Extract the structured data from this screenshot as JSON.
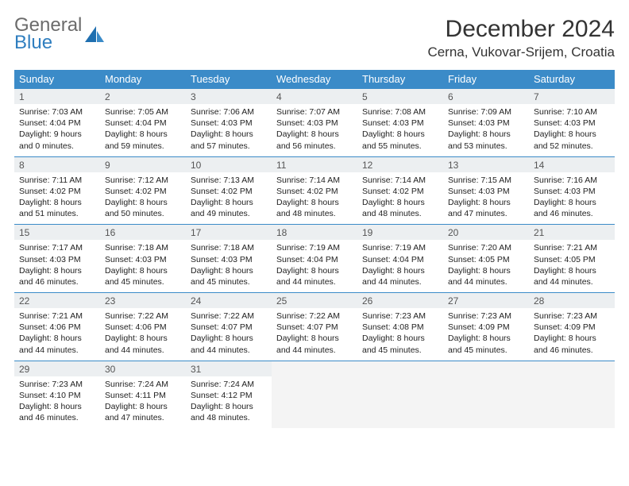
{
  "logo": {
    "text1": "General",
    "text2": "Blue"
  },
  "title": "December 2024",
  "location": "Cerna, Vukovar-Srijem, Croatia",
  "colors": {
    "header_bg": "#3b8bc8",
    "header_text": "#ffffff",
    "daynum_bg": "#eceff1",
    "border": "#3b8bc8",
    "logo_gray": "#6b6b6b",
    "logo_blue": "#2f7ebf"
  },
  "weekdays": [
    "Sunday",
    "Monday",
    "Tuesday",
    "Wednesday",
    "Thursday",
    "Friday",
    "Saturday"
  ],
  "weeks": [
    [
      {
        "n": "1",
        "sr": "Sunrise: 7:03 AM",
        "ss": "Sunset: 4:04 PM",
        "d1": "Daylight: 9 hours",
        "d2": "and 0 minutes."
      },
      {
        "n": "2",
        "sr": "Sunrise: 7:05 AM",
        "ss": "Sunset: 4:04 PM",
        "d1": "Daylight: 8 hours",
        "d2": "and 59 minutes."
      },
      {
        "n": "3",
        "sr": "Sunrise: 7:06 AM",
        "ss": "Sunset: 4:03 PM",
        "d1": "Daylight: 8 hours",
        "d2": "and 57 minutes."
      },
      {
        "n": "4",
        "sr": "Sunrise: 7:07 AM",
        "ss": "Sunset: 4:03 PM",
        "d1": "Daylight: 8 hours",
        "d2": "and 56 minutes."
      },
      {
        "n": "5",
        "sr": "Sunrise: 7:08 AM",
        "ss": "Sunset: 4:03 PM",
        "d1": "Daylight: 8 hours",
        "d2": "and 55 minutes."
      },
      {
        "n": "6",
        "sr": "Sunrise: 7:09 AM",
        "ss": "Sunset: 4:03 PM",
        "d1": "Daylight: 8 hours",
        "d2": "and 53 minutes."
      },
      {
        "n": "7",
        "sr": "Sunrise: 7:10 AM",
        "ss": "Sunset: 4:03 PM",
        "d1": "Daylight: 8 hours",
        "d2": "and 52 minutes."
      }
    ],
    [
      {
        "n": "8",
        "sr": "Sunrise: 7:11 AM",
        "ss": "Sunset: 4:02 PM",
        "d1": "Daylight: 8 hours",
        "d2": "and 51 minutes."
      },
      {
        "n": "9",
        "sr": "Sunrise: 7:12 AM",
        "ss": "Sunset: 4:02 PM",
        "d1": "Daylight: 8 hours",
        "d2": "and 50 minutes."
      },
      {
        "n": "10",
        "sr": "Sunrise: 7:13 AM",
        "ss": "Sunset: 4:02 PM",
        "d1": "Daylight: 8 hours",
        "d2": "and 49 minutes."
      },
      {
        "n": "11",
        "sr": "Sunrise: 7:14 AM",
        "ss": "Sunset: 4:02 PM",
        "d1": "Daylight: 8 hours",
        "d2": "and 48 minutes."
      },
      {
        "n": "12",
        "sr": "Sunrise: 7:14 AM",
        "ss": "Sunset: 4:02 PM",
        "d1": "Daylight: 8 hours",
        "d2": "and 48 minutes."
      },
      {
        "n": "13",
        "sr": "Sunrise: 7:15 AM",
        "ss": "Sunset: 4:03 PM",
        "d1": "Daylight: 8 hours",
        "d2": "and 47 minutes."
      },
      {
        "n": "14",
        "sr": "Sunrise: 7:16 AM",
        "ss": "Sunset: 4:03 PM",
        "d1": "Daylight: 8 hours",
        "d2": "and 46 minutes."
      }
    ],
    [
      {
        "n": "15",
        "sr": "Sunrise: 7:17 AM",
        "ss": "Sunset: 4:03 PM",
        "d1": "Daylight: 8 hours",
        "d2": "and 46 minutes."
      },
      {
        "n": "16",
        "sr": "Sunrise: 7:18 AM",
        "ss": "Sunset: 4:03 PM",
        "d1": "Daylight: 8 hours",
        "d2": "and 45 minutes."
      },
      {
        "n": "17",
        "sr": "Sunrise: 7:18 AM",
        "ss": "Sunset: 4:03 PM",
        "d1": "Daylight: 8 hours",
        "d2": "and 45 minutes."
      },
      {
        "n": "18",
        "sr": "Sunrise: 7:19 AM",
        "ss": "Sunset: 4:04 PM",
        "d1": "Daylight: 8 hours",
        "d2": "and 44 minutes."
      },
      {
        "n": "19",
        "sr": "Sunrise: 7:19 AM",
        "ss": "Sunset: 4:04 PM",
        "d1": "Daylight: 8 hours",
        "d2": "and 44 minutes."
      },
      {
        "n": "20",
        "sr": "Sunrise: 7:20 AM",
        "ss": "Sunset: 4:05 PM",
        "d1": "Daylight: 8 hours",
        "d2": "and 44 minutes."
      },
      {
        "n": "21",
        "sr": "Sunrise: 7:21 AM",
        "ss": "Sunset: 4:05 PM",
        "d1": "Daylight: 8 hours",
        "d2": "and 44 minutes."
      }
    ],
    [
      {
        "n": "22",
        "sr": "Sunrise: 7:21 AM",
        "ss": "Sunset: 4:06 PM",
        "d1": "Daylight: 8 hours",
        "d2": "and 44 minutes."
      },
      {
        "n": "23",
        "sr": "Sunrise: 7:22 AM",
        "ss": "Sunset: 4:06 PM",
        "d1": "Daylight: 8 hours",
        "d2": "and 44 minutes."
      },
      {
        "n": "24",
        "sr": "Sunrise: 7:22 AM",
        "ss": "Sunset: 4:07 PM",
        "d1": "Daylight: 8 hours",
        "d2": "and 44 minutes."
      },
      {
        "n": "25",
        "sr": "Sunrise: 7:22 AM",
        "ss": "Sunset: 4:07 PM",
        "d1": "Daylight: 8 hours",
        "d2": "and 44 minutes."
      },
      {
        "n": "26",
        "sr": "Sunrise: 7:23 AM",
        "ss": "Sunset: 4:08 PM",
        "d1": "Daylight: 8 hours",
        "d2": "and 45 minutes."
      },
      {
        "n": "27",
        "sr": "Sunrise: 7:23 AM",
        "ss": "Sunset: 4:09 PM",
        "d1": "Daylight: 8 hours",
        "d2": "and 45 minutes."
      },
      {
        "n": "28",
        "sr": "Sunrise: 7:23 AM",
        "ss": "Sunset: 4:09 PM",
        "d1": "Daylight: 8 hours",
        "d2": "and 46 minutes."
      }
    ],
    [
      {
        "n": "29",
        "sr": "Sunrise: 7:23 AM",
        "ss": "Sunset: 4:10 PM",
        "d1": "Daylight: 8 hours",
        "d2": "and 46 minutes."
      },
      {
        "n": "30",
        "sr": "Sunrise: 7:24 AM",
        "ss": "Sunset: 4:11 PM",
        "d1": "Daylight: 8 hours",
        "d2": "and 47 minutes."
      },
      {
        "n": "31",
        "sr": "Sunrise: 7:24 AM",
        "ss": "Sunset: 4:12 PM",
        "d1": "Daylight: 8 hours",
        "d2": "and 48 minutes."
      },
      null,
      null,
      null,
      null
    ]
  ]
}
